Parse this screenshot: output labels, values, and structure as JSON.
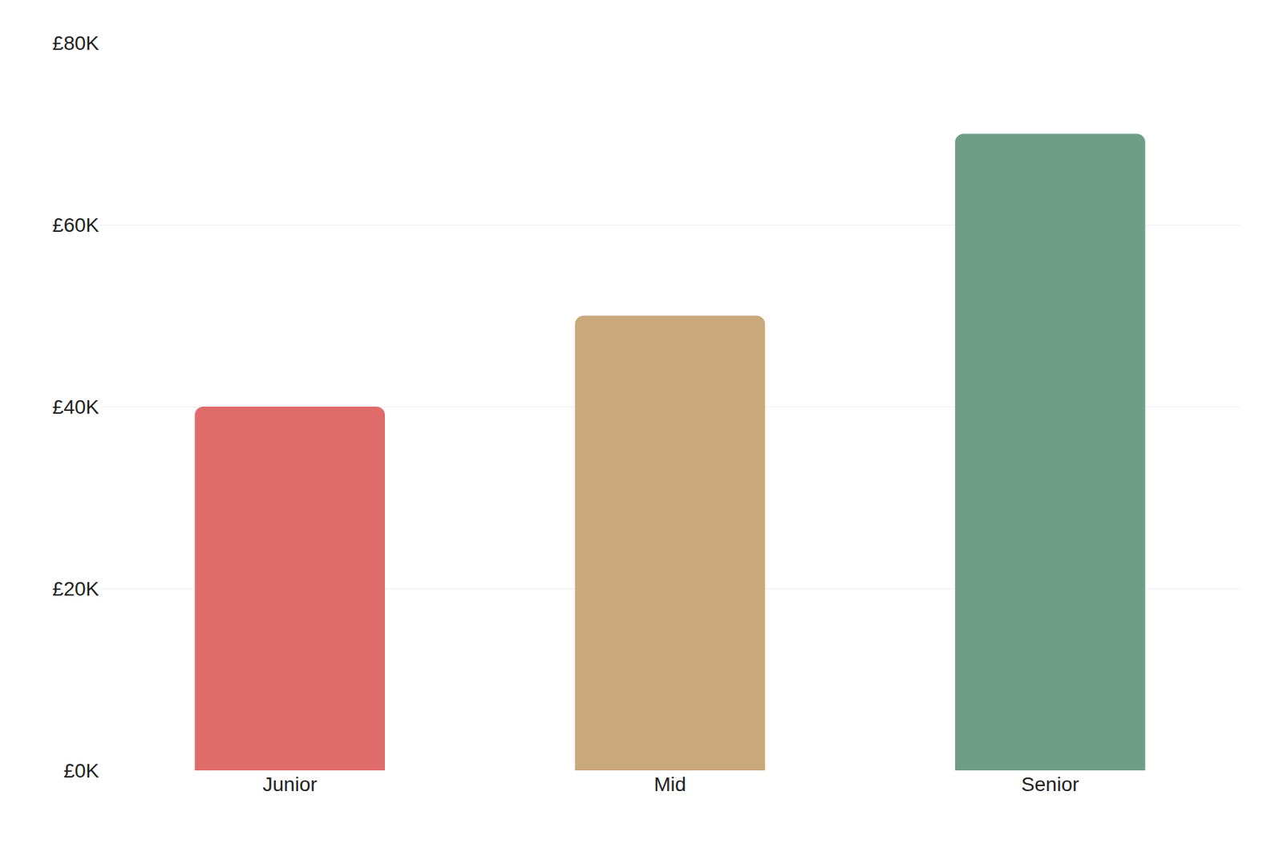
{
  "chart_data": {
    "type": "bar",
    "categories": [
      "Junior",
      "Mid",
      "Senior"
    ],
    "values": [
      40000,
      50000,
      70000
    ],
    "colors": [
      "#E06B6B",
      "#C9A87A",
      "#6E9E87"
    ],
    "ylim": [
      0,
      80000
    ],
    "yticks": [
      {
        "value": 0,
        "label": "£0K"
      },
      {
        "value": 20000,
        "label": "£20K"
      },
      {
        "value": 40000,
        "label": "£40K"
      },
      {
        "value": 60000,
        "label": "£60K"
      },
      {
        "value": 80000,
        "label": "£80K"
      }
    ],
    "grid": true
  }
}
